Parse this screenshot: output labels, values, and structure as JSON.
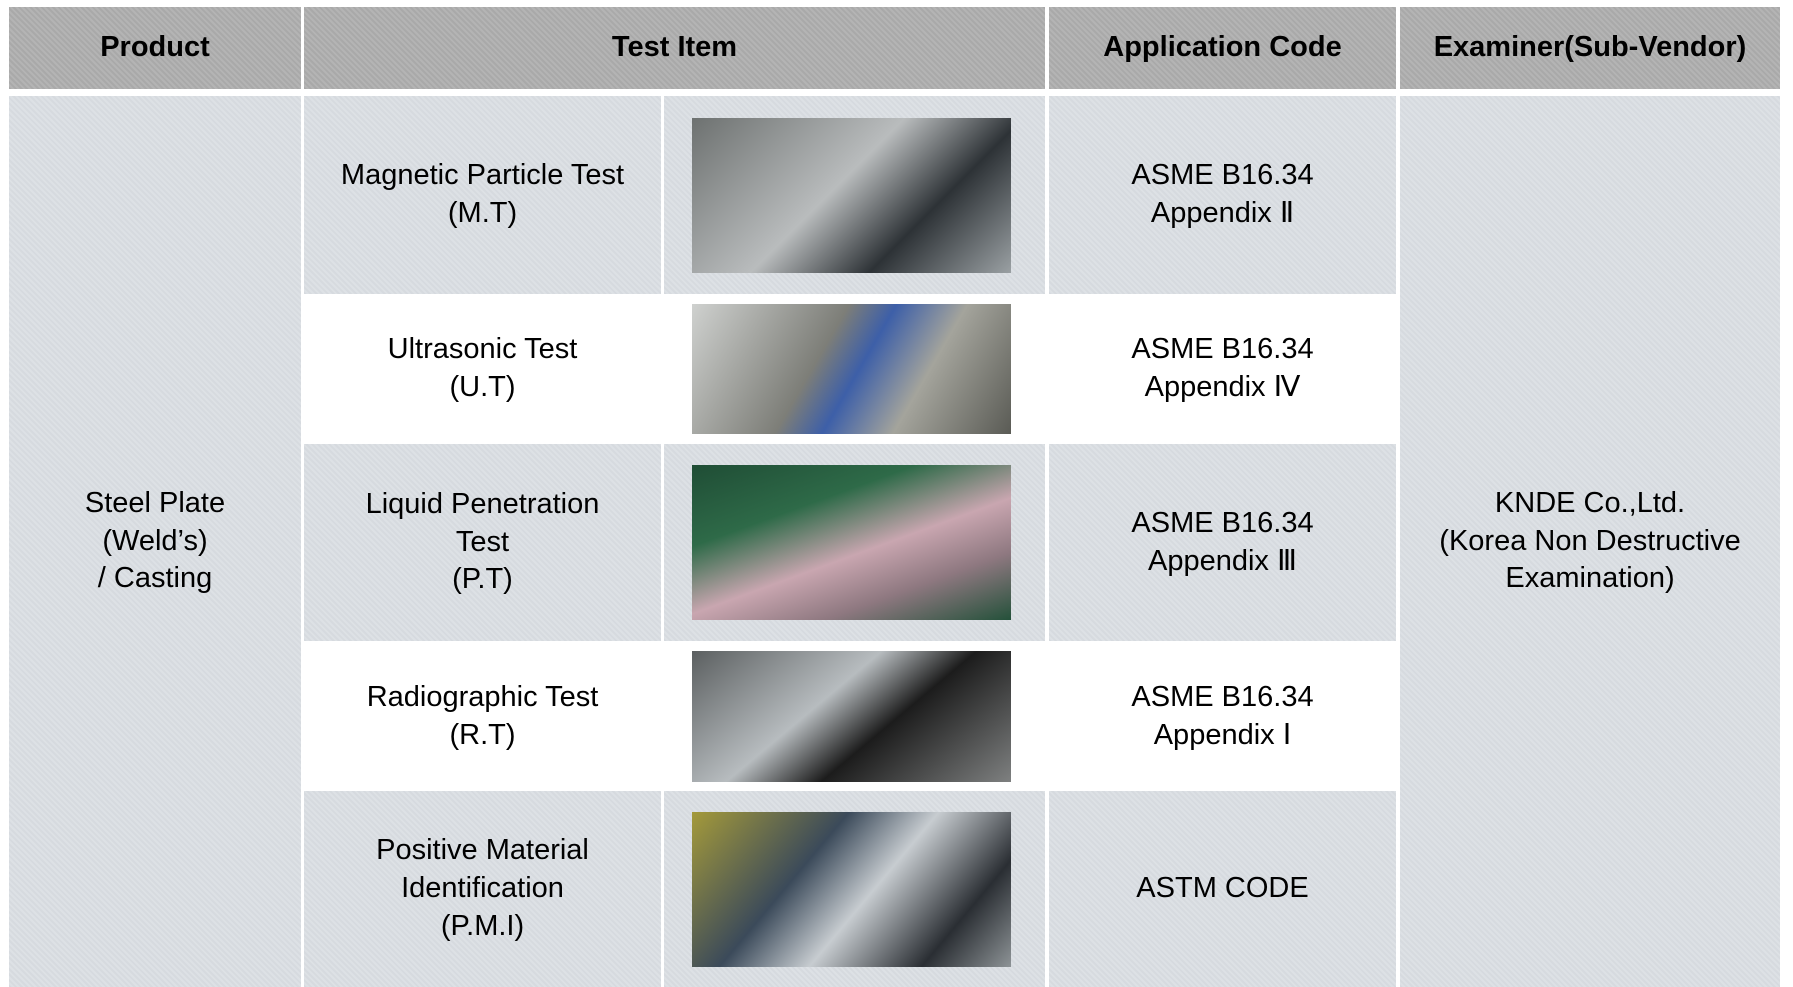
{
  "table": {
    "header": [
      "Product",
      "Test Item",
      "Application Code",
      "Examiner(Sub-Vendor)"
    ],
    "product": "Steel Plate\n(Weld’s)\n/ Casting",
    "examiner": "KNDE Co.,Ltd.\n(Korea Non Destructive\nExamination)",
    "rows": [
      [
        "Magnetic Particle Test\n(M.T)",
        "ASME B16.34\nAppendix Ⅱ"
      ],
      [
        "Ultrasonic Test\n(U.T)",
        "ASME B16.34\nAppendix Ⅳ"
      ],
      [
        "Liquid Penetration\nTest\n(P.T)",
        "ASME B16.34\nAppendix Ⅲ"
      ],
      [
        "Radiographic Test\n(R.T)",
        "ASME B16.34\nAppendix Ⅰ"
      ],
      [
        "Positive Material\nIdentification\n(P.M.I)",
        "ASTM CODE"
      ]
    ]
  }
}
